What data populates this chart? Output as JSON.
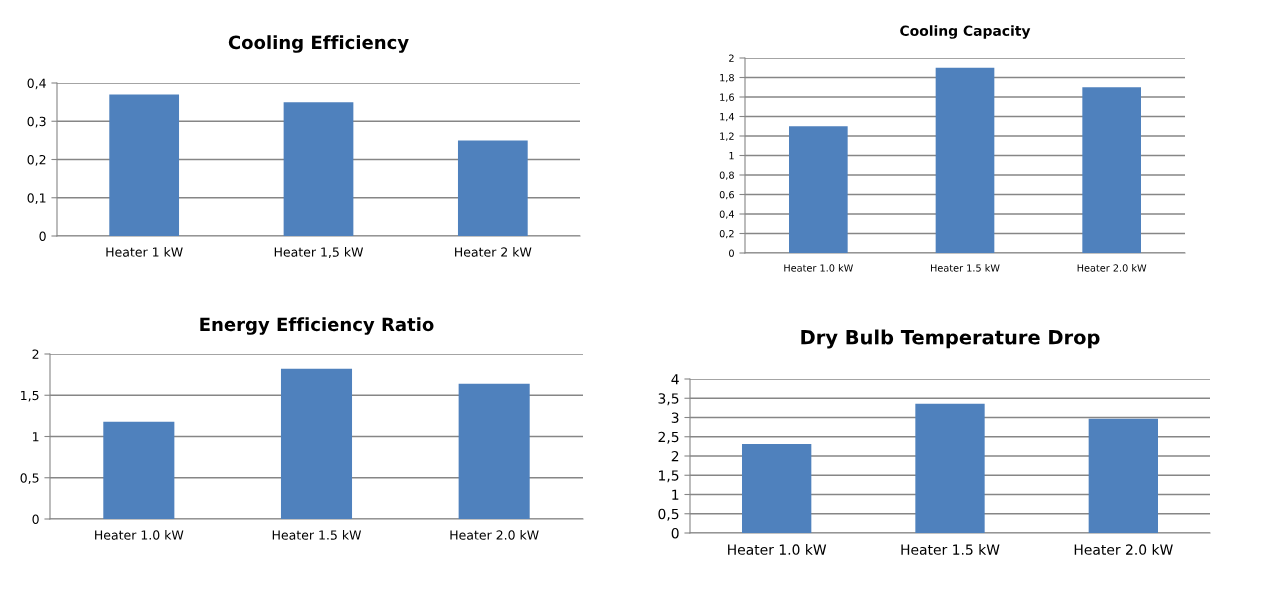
{
  "chart_data": [
    {
      "type": "bar",
      "title": "Cooling Efficiency",
      "categories": [
        "Heater 1 kW",
        "Heater 1,5 kW",
        "Heater 2 kW"
      ],
      "values": [
        0.37,
        0.35,
        0.25
      ],
      "color": "#4f81bd",
      "ylim": [
        0,
        0.4
      ],
      "yticks": [
        0,
        {
          "value": 0.1,
          "label": "0,1"
        },
        {
          "value": 0.2,
          "label": "0,2"
        },
        {
          "value": 0.3,
          "label": "0,3"
        },
        {
          "value": 0.4,
          "label": "0,4"
        }
      ],
      "grid": "y"
    },
    {
      "type": "bar",
      "title": "Cooling Capacity",
      "categories": [
        "Heater 1.0 kW",
        "Heater 1.5 kW",
        "Heater 2.0 kW"
      ],
      "values": [
        1.3,
        1.9,
        1.7
      ],
      "color": "#4f81bd",
      "ylim": [
        0,
        2
      ],
      "yticks": [
        0,
        {
          "value": 0.2,
          "label": "0,2"
        },
        {
          "value": 0.4,
          "label": "0,4"
        },
        {
          "value": 0.6,
          "label": "0,6"
        },
        {
          "value": 0.8,
          "label": "0,8"
        },
        1,
        {
          "value": 1.2,
          "label": "1,2"
        },
        {
          "value": 1.4,
          "label": "1,4"
        },
        {
          "value": 1.6,
          "label": "1,6"
        },
        {
          "value": 1.8,
          "label": "1,8"
        },
        2
      ],
      "grid": "y"
    },
    {
      "type": "bar",
      "title": "Energy Efficiency Ratio",
      "categories": [
        "Heater 1.0 kW",
        "Heater 1.5 kW",
        "Heater 2.0 kW"
      ],
      "values": [
        1.18,
        1.82,
        1.64
      ],
      "color": "#4f81bd",
      "ylim": [
        0,
        2
      ],
      "yticks": [
        0,
        {
          "value": 0.5,
          "label": "0,5"
        },
        1,
        {
          "value": 1.5,
          "label": "1,5"
        },
        2
      ],
      "grid": "y"
    },
    {
      "type": "bar",
      "title": "Dry Bulb Temperature Drop",
      "categories": [
        "Heater 1.0 kW",
        "Heater 1.5 kW",
        "Heater 2.0 kW"
      ],
      "values": [
        2.31,
        3.36,
        2.97
      ],
      "color": "#4f81bd",
      "ylim": [
        0,
        4
      ],
      "yticks": [
        0,
        {
          "value": 0.5,
          "label": "0,5"
        },
        1,
        {
          "value": 1.5,
          "label": "1,5"
        },
        2,
        {
          "value": 2.5,
          "label": "2,5"
        },
        3,
        {
          "value": 3.5,
          "label": "3,5"
        },
        4
      ],
      "grid": "y"
    }
  ]
}
